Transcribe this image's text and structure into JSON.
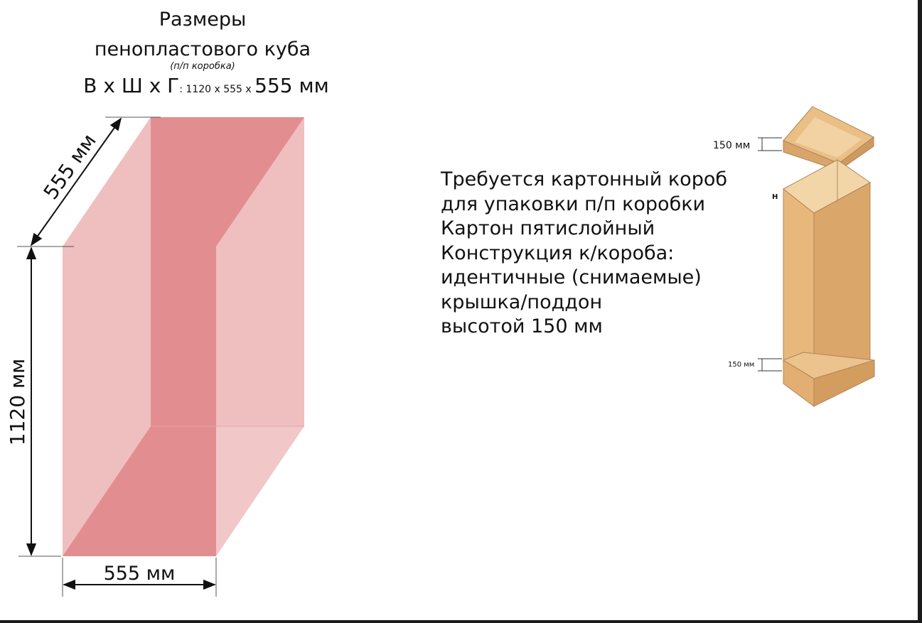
{
  "title": {
    "line1": "Размеры",
    "line2": "пенопластового куба",
    "subtitle": "(п/п коробка)",
    "dims_prefix": "В х Ш х Г",
    "dims_small": ": 1120 х 555 х ",
    "dims_big": "555 мм"
  },
  "cube": {
    "depth_label": "555 мм",
    "height_label": "1120 мм",
    "width_label": "555 мм",
    "fill_light": "#efbdbe",
    "fill_dark": "#e28e90"
  },
  "description": {
    "lines": [
      "Требуется картонный короб",
      "для упаковки п/п коробки",
      "Картон пятислойный",
      "Конструкция к/короба:",
      "идентичные (снимаемые)",
      "крышка/поддон",
      "высотой 150 мм"
    ]
  },
  "box_illustration": {
    "lid_height_label": "150 мм",
    "tray_height_label": "150 мм",
    "h_label": "Н",
    "cardboard_color": "#e5b47a"
  }
}
